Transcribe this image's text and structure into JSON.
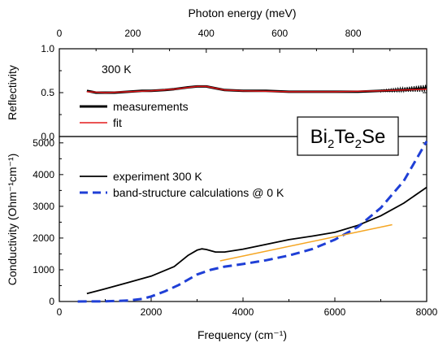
{
  "chart_data": [
    {
      "type": "line",
      "xlabel_top": "Photon energy (meV)",
      "ylabel": "Reflectivity",
      "xlim_top": [
        0,
        1000
      ],
      "ylim": [
        0.0,
        1.0
      ],
      "x_ticks_top": [
        "0",
        "200",
        "400",
        "600",
        "800"
      ],
      "y_ticks": [
        "0.0",
        "0.5",
        "1.0"
      ],
      "annotation": "300 K",
      "grid": false,
      "legend_position": "lower-left",
      "series": [
        {
          "name": "measurements",
          "color": "#000000",
          "x_units": "cm^-1",
          "x": [
            600,
            700,
            800,
            1000,
            1200,
            1500,
            1800,
            2000,
            2300,
            2500,
            2800,
            3000,
            3100,
            3200,
            3400,
            3600,
            4000,
            4500,
            5000,
            5500,
            6000,
            6500,
            7000,
            7500,
            8000
          ],
          "y": [
            0.52,
            0.51,
            0.5,
            0.5,
            0.5,
            0.51,
            0.52,
            0.52,
            0.53,
            0.54,
            0.56,
            0.57,
            0.57,
            0.57,
            0.55,
            0.53,
            0.52,
            0.52,
            0.51,
            0.51,
            0.51,
            0.51,
            0.52,
            0.53,
            0.55
          ]
        },
        {
          "name": "fit",
          "color": "#e41a1c",
          "x_units": "cm^-1",
          "x": [
            600,
            1000,
            1500,
            2000,
            2500,
            3000,
            3200,
            3600,
            4000,
            5000,
            6000,
            7000,
            8000
          ],
          "y": [
            0.51,
            0.5,
            0.51,
            0.52,
            0.54,
            0.57,
            0.57,
            0.53,
            0.52,
            0.51,
            0.51,
            0.52,
            0.54
          ]
        }
      ]
    },
    {
      "type": "line",
      "xlabel": "Frequency (cm⁻¹)",
      "ylabel": "Conductivity (Ohm⁻¹cm⁻¹)",
      "xlim": [
        0,
        8000
      ],
      "ylim": [
        0,
        5200
      ],
      "x_ticks": [
        "0",
        "2000",
        "4000",
        "6000",
        "8000"
      ],
      "y_ticks": [
        "0",
        "1000",
        "2000",
        "3000",
        "4000",
        "5000"
      ],
      "grid": false,
      "legend_position": "upper-left",
      "series": [
        {
          "name": "experiment 300 K",
          "color": "#000000",
          "style": "solid",
          "x": [
            600,
            1000,
            1500,
            2000,
            2500,
            2800,
            3000,
            3100,
            3200,
            3400,
            3600,
            4000,
            4500,
            5000,
            5500,
            6000,
            6500,
            7000,
            7500,
            8000
          ],
          "y": [
            250,
            400,
            600,
            800,
            1100,
            1450,
            1620,
            1660,
            1640,
            1560,
            1560,
            1650,
            1800,
            1950,
            2060,
            2180,
            2400,
            2700,
            3100,
            3600
          ]
        },
        {
          "name": "band-structure calculations @ 0 K",
          "color": "#1f3fd6",
          "style": "dashed",
          "x": [
            400,
            1000,
            1500,
            1800,
            2000,
            2300,
            2600,
            3000,
            3300,
            3600,
            4000,
            4500,
            5000,
            5500,
            6000,
            6500,
            7000,
            7500,
            8000
          ],
          "y": [
            0,
            5,
            30,
            80,
            160,
            320,
            520,
            850,
            1000,
            1100,
            1180,
            1300,
            1450,
            1650,
            1950,
            2350,
            2950,
            3800,
            5050
          ]
        },
        {
          "color": "#f5a623",
          "style": "solid",
          "x": [
            3500,
            7250
          ],
          "y": [
            1280,
            2420
          ]
        }
      ]
    }
  ],
  "inset_label": {
    "formula_parts": [
      "Bi",
      "2",
      "Te",
      "2",
      "Se"
    ]
  }
}
